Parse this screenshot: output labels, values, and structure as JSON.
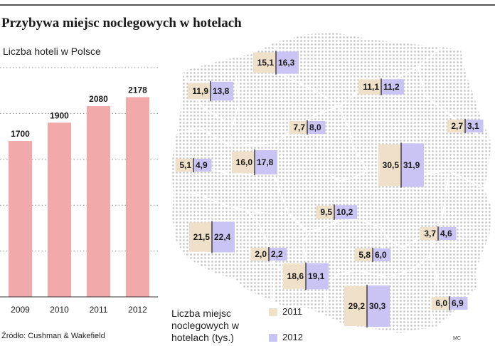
{
  "title": "Przybywa miejsc noclegowych w hotelach",
  "source": "Źródło: Cushman & Wakefield",
  "credit": "MC",
  "colors": {
    "bar": "#f2a9aa",
    "y2011": "#efe0c9",
    "y2012": "#c9c4f3",
    "map_dots": "#c6c6c6",
    "borders": "#ffffff"
  },
  "chart_data": [
    {
      "type": "bar",
      "title": "Liczba hoteli w Polsce",
      "categories": [
        "2009",
        "2010",
        "2011",
        "2012"
      ],
      "values": [
        1700,
        1900,
        2080,
        2178
      ],
      "value_labels": [
        "1700",
        "1900",
        "2080",
        "2178"
      ],
      "ylim": [
        0,
        2500
      ],
      "grid": true,
      "grid_style": "dotted"
    },
    {
      "type": "bar",
      "map": "Poland voivodeships",
      "title": "Liczba miejsc noclegowych w hotelach (tys.)",
      "series": [
        {
          "name": "2011",
          "color": "#efe0c9"
        },
        {
          "name": "2012",
          "color": "#c9c4f3"
        }
      ],
      "regions": [
        {
          "v2011": 15.1,
          "v2012": 16.3,
          "l2011": "15,1",
          "l2012": "16,3"
        },
        {
          "v2011": 11.9,
          "v2012": 13.8,
          "l2011": "11,9",
          "l2012": "13,8"
        },
        {
          "v2011": 11.1,
          "v2012": 11.2,
          "l2011": "11,1",
          "l2012": "11,2"
        },
        {
          "v2011": 7.7,
          "v2012": 8.0,
          "l2011": "7,7",
          "l2012": "8,0"
        },
        {
          "v2011": 2.7,
          "v2012": 3.1,
          "l2011": "2,7",
          "l2012": "3,1"
        },
        {
          "v2011": 5.1,
          "v2012": 4.9,
          "l2011": "5,1",
          "l2012": "4,9"
        },
        {
          "v2011": 16.0,
          "v2012": 17.8,
          "l2011": "16,0",
          "l2012": "17,8"
        },
        {
          "v2011": 30.5,
          "v2012": 31.9,
          "l2011": "30,5",
          "l2012": "31,9"
        },
        {
          "v2011": 9.5,
          "v2012": 10.2,
          "l2011": "9,5",
          "l2012": "10,2"
        },
        {
          "v2011": 21.5,
          "v2012": 22.4,
          "l2011": "21,5",
          "l2012": "22,4"
        },
        {
          "v2011": 3.7,
          "v2012": 4.6,
          "l2011": "3,7",
          "l2012": "4,6"
        },
        {
          "v2011": 2.0,
          "v2012": 2.2,
          "l2011": "2,0",
          "l2012": "2,2"
        },
        {
          "v2011": 5.8,
          "v2012": 6.0,
          "l2011": "5,8",
          "l2012": "6,0"
        },
        {
          "v2011": 18.6,
          "v2012": 19.1,
          "l2011": "18,6",
          "l2012": "19,1"
        },
        {
          "v2011": 29.2,
          "v2012": 30.3,
          "l2011": "29,2",
          "l2012": "30,3"
        },
        {
          "v2011": 6.0,
          "v2012": 6.9,
          "l2011": "6,0",
          "l2012": "6,9"
        }
      ]
    }
  ],
  "legend": {
    "title": "Liczba miejsc noclegowych w hotelach (tys.)",
    "items": [
      {
        "label": "2011",
        "color": "#efe0c9"
      },
      {
        "label": "2012",
        "color": "#c9c4f3"
      }
    ]
  }
}
